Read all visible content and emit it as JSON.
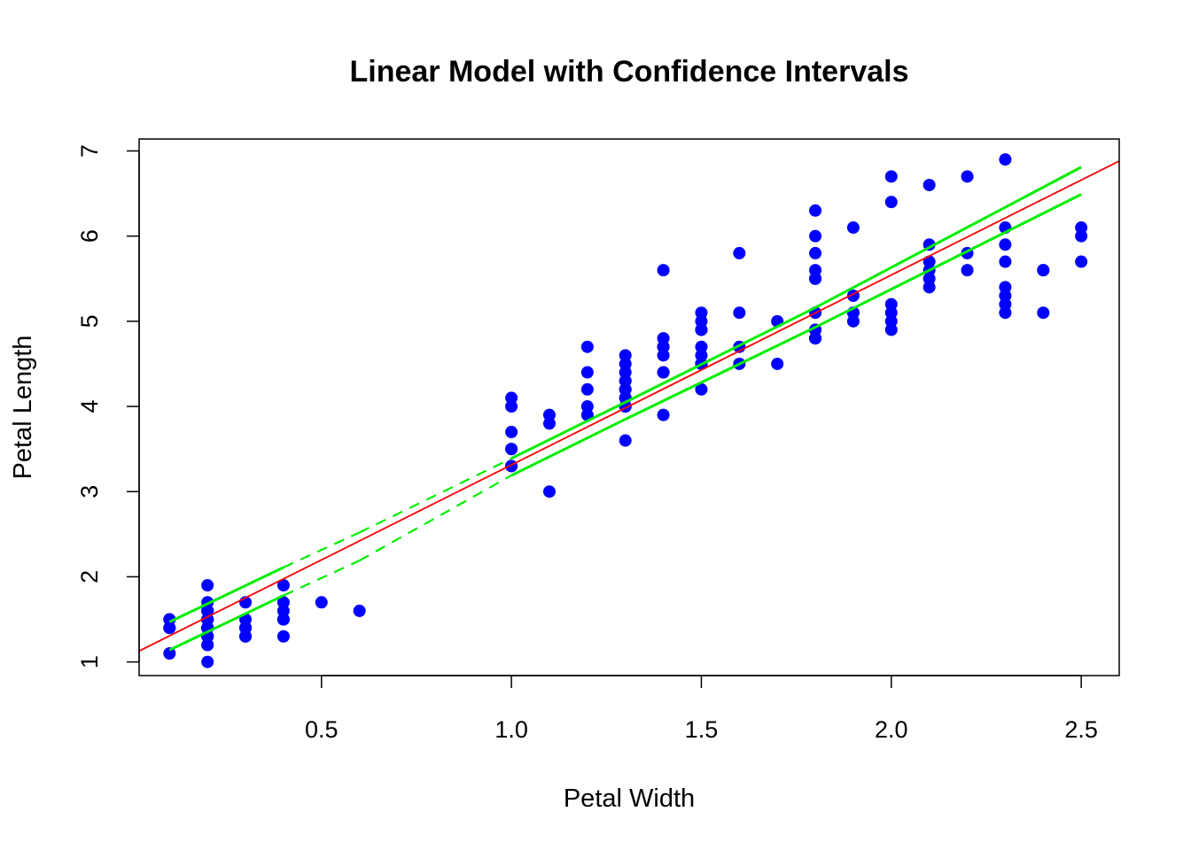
{
  "chart_data": {
    "type": "scatter",
    "title": "Linear Model with Confidence Intervals",
    "xlabel": "Petal Width",
    "ylabel": "Petal Length",
    "xlim": [
      0.02,
      2.6
    ],
    "ylim": [
      0.84,
      7.14
    ],
    "xticks": [
      "0.5",
      "1.0",
      "1.5",
      "2.0",
      "2.5"
    ],
    "yticks": [
      "1",
      "2",
      "3",
      "4",
      "5",
      "6",
      "7"
    ],
    "grid": false,
    "legend": "none",
    "colors": {
      "points": "#0000ff",
      "fit": "#ff0000",
      "ci": "#00ee00"
    },
    "points": [
      [
        0.2,
        1.4
      ],
      [
        0.2,
        1.4
      ],
      [
        0.2,
        1.3
      ],
      [
        0.2,
        1.5
      ],
      [
        0.2,
        1.4
      ],
      [
        0.4,
        1.7
      ],
      [
        0.3,
        1.4
      ],
      [
        0.2,
        1.5
      ],
      [
        0.2,
        1.4
      ],
      [
        0.1,
        1.5
      ],
      [
        0.2,
        1.5
      ],
      [
        0.2,
        1.6
      ],
      [
        0.1,
        1.4
      ],
      [
        0.1,
        1.1
      ],
      [
        0.2,
        1.2
      ],
      [
        0.4,
        1.5
      ],
      [
        0.4,
        1.3
      ],
      [
        0.3,
        1.4
      ],
      [
        0.3,
        1.7
      ],
      [
        0.3,
        1.5
      ],
      [
        0.2,
        1.7
      ],
      [
        0.4,
        1.5
      ],
      [
        0.2,
        1.0
      ],
      [
        0.5,
        1.7
      ],
      [
        0.2,
        1.9
      ],
      [
        0.2,
        1.6
      ],
      [
        0.4,
        1.6
      ],
      [
        0.2,
        1.5
      ],
      [
        0.2,
        1.4
      ],
      [
        0.2,
        1.6
      ],
      [
        0.2,
        1.6
      ],
      [
        0.4,
        1.5
      ],
      [
        0.1,
        1.5
      ],
      [
        0.2,
        1.4
      ],
      [
        0.2,
        1.5
      ],
      [
        0.2,
        1.2
      ],
      [
        0.2,
        1.3
      ],
      [
        0.1,
        1.4
      ],
      [
        0.2,
        1.3
      ],
      [
        0.2,
        1.5
      ],
      [
        0.3,
        1.3
      ],
      [
        0.3,
        1.3
      ],
      [
        0.2,
        1.3
      ],
      [
        0.6,
        1.6
      ],
      [
        0.4,
        1.9
      ],
      [
        0.3,
        1.4
      ],
      [
        0.2,
        1.6
      ],
      [
        0.2,
        1.4
      ],
      [
        0.2,
        1.5
      ],
      [
        0.2,
        1.4
      ],
      [
        1.4,
        4.7
      ],
      [
        1.5,
        4.5
      ],
      [
        1.5,
        4.9
      ],
      [
        1.3,
        4.0
      ],
      [
        1.5,
        4.6
      ],
      [
        1.3,
        4.5
      ],
      [
        1.6,
        4.7
      ],
      [
        1.0,
        3.3
      ],
      [
        1.3,
        4.6
      ],
      [
        1.4,
        3.9
      ],
      [
        1.0,
        3.5
      ],
      [
        1.5,
        4.2
      ],
      [
        1.0,
        4.0
      ],
      [
        1.4,
        4.7
      ],
      [
        1.3,
        3.6
      ],
      [
        1.4,
        4.4
      ],
      [
        1.5,
        4.5
      ],
      [
        1.0,
        4.1
      ],
      [
        1.5,
        4.5
      ],
      [
        1.1,
        3.9
      ],
      [
        1.8,
        4.8
      ],
      [
        1.3,
        4.0
      ],
      [
        1.5,
        4.9
      ],
      [
        1.2,
        4.7
      ],
      [
        1.3,
        4.3
      ],
      [
        1.4,
        4.4
      ],
      [
        1.4,
        4.8
      ],
      [
        1.7,
        5.0
      ],
      [
        1.5,
        4.5
      ],
      [
        1.0,
        3.5
      ],
      [
        1.1,
        3.8
      ],
      [
        1.0,
        3.7
      ],
      [
        1.2,
        3.9
      ],
      [
        1.6,
        5.1
      ],
      [
        1.5,
        4.5
      ],
      [
        1.6,
        4.5
      ],
      [
        1.5,
        4.7
      ],
      [
        1.3,
        4.4
      ],
      [
        1.3,
        4.1
      ],
      [
        1.3,
        4.0
      ],
      [
        1.2,
        4.4
      ],
      [
        1.4,
        4.6
      ],
      [
        1.2,
        4.0
      ],
      [
        1.0,
        3.3
      ],
      [
        1.3,
        4.2
      ],
      [
        1.2,
        4.2
      ],
      [
        1.3,
        4.2
      ],
      [
        1.3,
        4.3
      ],
      [
        1.1,
        3.0
      ],
      [
        1.3,
        4.1
      ],
      [
        2.5,
        6.0
      ],
      [
        1.9,
        5.1
      ],
      [
        2.1,
        5.9
      ],
      [
        1.8,
        5.6
      ],
      [
        2.2,
        5.8
      ],
      [
        2.1,
        6.6
      ],
      [
        1.7,
        4.5
      ],
      [
        1.8,
        6.3
      ],
      [
        1.8,
        5.8
      ],
      [
        2.5,
        6.1
      ],
      [
        2.0,
        5.1
      ],
      [
        1.9,
        5.3
      ],
      [
        2.1,
        5.5
      ],
      [
        2.0,
        5.0
      ],
      [
        2.4,
        5.1
      ],
      [
        2.3,
        5.3
      ],
      [
        1.8,
        5.5
      ],
      [
        2.2,
        6.7
      ],
      [
        2.3,
        6.9
      ],
      [
        1.5,
        5.0
      ],
      [
        2.3,
        5.7
      ],
      [
        2.0,
        4.9
      ],
      [
        2.0,
        6.7
      ],
      [
        1.8,
        4.9
      ],
      [
        2.1,
        5.7
      ],
      [
        1.8,
        6.0
      ],
      [
        1.8,
        4.8
      ],
      [
        1.8,
        4.9
      ],
      [
        2.1,
        5.6
      ],
      [
        1.6,
        5.8
      ],
      [
        1.9,
        6.1
      ],
      [
        2.0,
        6.4
      ],
      [
        2.2,
        5.6
      ],
      [
        1.5,
        5.1
      ],
      [
        1.4,
        5.6
      ],
      [
        2.3,
        6.1
      ],
      [
        2.4,
        5.6
      ],
      [
        1.8,
        5.5
      ],
      [
        1.8,
        4.8
      ],
      [
        2.1,
        5.4
      ],
      [
        2.4,
        5.6
      ],
      [
        2.3,
        5.1
      ],
      [
        1.9,
        5.1
      ],
      [
        2.3,
        5.9
      ],
      [
        2.5,
        5.7
      ],
      [
        2.3,
        5.2
      ],
      [
        1.9,
        5.0
      ],
      [
        2.0,
        5.2
      ],
      [
        2.3,
        5.4
      ],
      [
        1.8,
        5.1
      ]
    ],
    "fit": {
      "intercept": 1.0836,
      "slope": 2.2299
    },
    "ci_upper": [
      [
        0.1,
        1.47
      ],
      [
        0.4,
        2.11
      ],
      [
        0.6,
        2.52
      ],
      [
        1.0,
        3.39
      ],
      [
        1.3,
        4.05
      ],
      [
        1.8,
        5.16
      ],
      [
        2.5,
        6.81
      ]
    ],
    "ci_lower": [
      [
        0.1,
        1.14
      ],
      [
        0.4,
        1.78
      ],
      [
        0.6,
        2.19
      ],
      [
        1.0,
        3.19
      ],
      [
        1.3,
        3.85
      ],
      [
        1.8,
        4.93
      ],
      [
        2.5,
        6.49
      ]
    ],
    "ci_dashed_range": [
      0.4,
      1.0
    ]
  }
}
